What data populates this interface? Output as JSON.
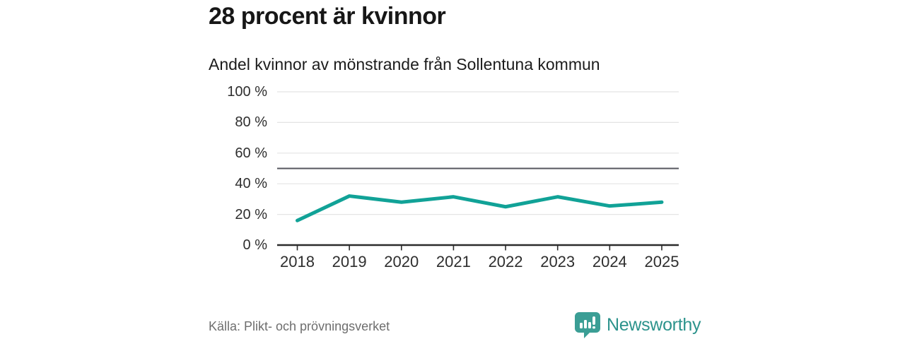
{
  "title": "28 procent är kvinnor",
  "subtitle": "Andel kvinnor av mönstrande från Sollentuna kommun",
  "source": "Källa: Plikt- och prövningsverket",
  "brand": {
    "name": "Newsworthy",
    "icon": "newsworthy-speech-bubble-bar-chart-icon",
    "text_color": "#2c938c",
    "icon_color": "#3b9e95"
  },
  "colors": {
    "line": "#11a297",
    "grid": "#e4e4e4",
    "axis": "#2b2b2b",
    "reference_line": "#55565e",
    "title_text": "#171717",
    "tick_text": "#2e2e2e",
    "muted_text": "#6e6e6e"
  },
  "chart_data": {
    "type": "line",
    "title": "28 procent är kvinnor",
    "subtitle": "Andel kvinnor av mönstrande från Sollentuna kommun",
    "categories": [
      "2018",
      "2019",
      "2020",
      "2021",
      "2022",
      "2023",
      "2024",
      "2025"
    ],
    "series": [
      {
        "name": "Andel kvinnor av mönstrande",
        "values": [
          16,
          32,
          28,
          31.5,
          25,
          31.5,
          25.5,
          28
        ]
      }
    ],
    "xlabel": "",
    "ylabel": "",
    "ylim": [
      0,
      100
    ],
    "yticks": [
      0,
      20,
      40,
      60,
      80,
      100
    ],
    "ytick_labels": [
      "0 %",
      "20 %",
      "40 %",
      "60 %",
      "80 %",
      "100 %"
    ],
    "reference_line": 50,
    "grid": true,
    "legend_position": "none",
    "unit": "%"
  }
}
